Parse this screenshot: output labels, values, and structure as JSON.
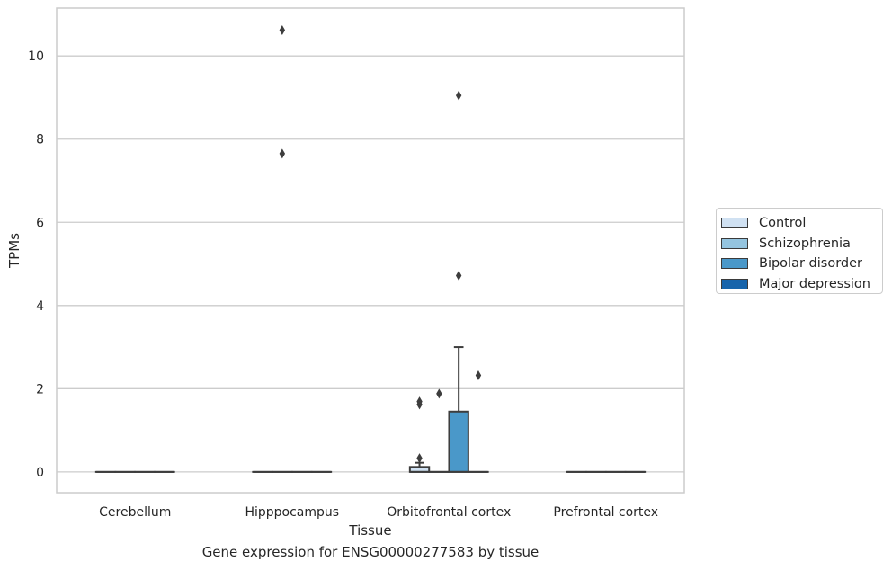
{
  "chart_data": {
    "type": "box",
    "xlabel": "Tissue",
    "ylabel": "TPMs",
    "caption": "Gene expression for ENSG00000277583 by tissue",
    "categories": [
      "Cerebellum",
      "Hipppocampus",
      "Orbitofrontal cortex",
      "Prefrontal cortex"
    ],
    "yticks": [
      0,
      2,
      4,
      6,
      8,
      10
    ],
    "ylim": [
      -0.5,
      11.15
    ],
    "grid": true,
    "legend_position": "right",
    "series": [
      {
        "name": "Control",
        "color": "#d0e1f2",
        "boxes": [
          {
            "category": "Cerebellum",
            "q1": 0,
            "median": 0,
            "q3": 0,
            "whislo": 0,
            "whishi": 0,
            "fliers": []
          },
          {
            "category": "Hipppocampus",
            "q1": 0,
            "median": 0,
            "q3": 0,
            "whislo": 0,
            "whishi": 0,
            "fliers": []
          },
          {
            "category": "Orbitofrontal cortex",
            "q1": 0,
            "median": 0,
            "q3": 0.12,
            "whislo": 0,
            "whishi": 0.22,
            "fliers": [
              0.33,
              1.62,
              1.69
            ]
          },
          {
            "category": "Prefrontal cortex",
            "q1": 0,
            "median": 0,
            "q3": 0,
            "whislo": 0,
            "whishi": 0,
            "fliers": []
          }
        ]
      },
      {
        "name": "Schizophrenia",
        "color": "#94c4df",
        "boxes": [
          {
            "category": "Cerebellum",
            "q1": 0,
            "median": 0,
            "q3": 0,
            "whislo": 0,
            "whishi": 0,
            "fliers": []
          },
          {
            "category": "Hipppocampus",
            "q1": 0,
            "median": 0,
            "q3": 0,
            "whislo": 0,
            "whishi": 0,
            "fliers": [
              7.65,
              10.62
            ]
          },
          {
            "category": "Orbitofrontal cortex",
            "q1": 0,
            "median": 0,
            "q3": 0,
            "whislo": 0,
            "whishi": 0,
            "fliers": [
              1.88
            ]
          },
          {
            "category": "Prefrontal cortex",
            "q1": 0,
            "median": 0,
            "q3": 0,
            "whislo": 0,
            "whishi": 0,
            "fliers": []
          }
        ]
      },
      {
        "name": "Bipolar disorder",
        "color": "#4a98c9",
        "boxes": [
          {
            "category": "Cerebellum",
            "q1": 0,
            "median": 0,
            "q3": 0,
            "whislo": 0,
            "whishi": 0,
            "fliers": []
          },
          {
            "category": "Hipppocampus",
            "q1": 0,
            "median": 0,
            "q3": 0,
            "whislo": 0,
            "whishi": 0,
            "fliers": []
          },
          {
            "category": "Orbitofrontal cortex",
            "q1": 0,
            "median": 0,
            "q3": 1.45,
            "whislo": 0,
            "whishi": 3.0,
            "fliers": [
              4.72,
              9.05
            ]
          },
          {
            "category": "Prefrontal cortex",
            "q1": 0,
            "median": 0,
            "q3": 0,
            "whislo": 0,
            "whishi": 0,
            "fliers": []
          }
        ]
      },
      {
        "name": "Major depression",
        "color": "#1764ab",
        "boxes": [
          {
            "category": "Cerebellum",
            "q1": 0,
            "median": 0,
            "q3": 0,
            "whislo": 0,
            "whishi": 0,
            "fliers": []
          },
          {
            "category": "Hipppocampus",
            "q1": 0,
            "median": 0,
            "q3": 0,
            "whislo": 0,
            "whishi": 0,
            "fliers": []
          },
          {
            "category": "Orbitofrontal cortex",
            "q1": 0,
            "median": 0,
            "q3": 0,
            "whislo": 0,
            "whishi": 0,
            "fliers": [
              2.32
            ]
          },
          {
            "category": "Prefrontal cortex",
            "q1": 0,
            "median": 0,
            "q3": 0,
            "whislo": 0,
            "whishi": 0,
            "fliers": []
          }
        ]
      }
    ]
  }
}
